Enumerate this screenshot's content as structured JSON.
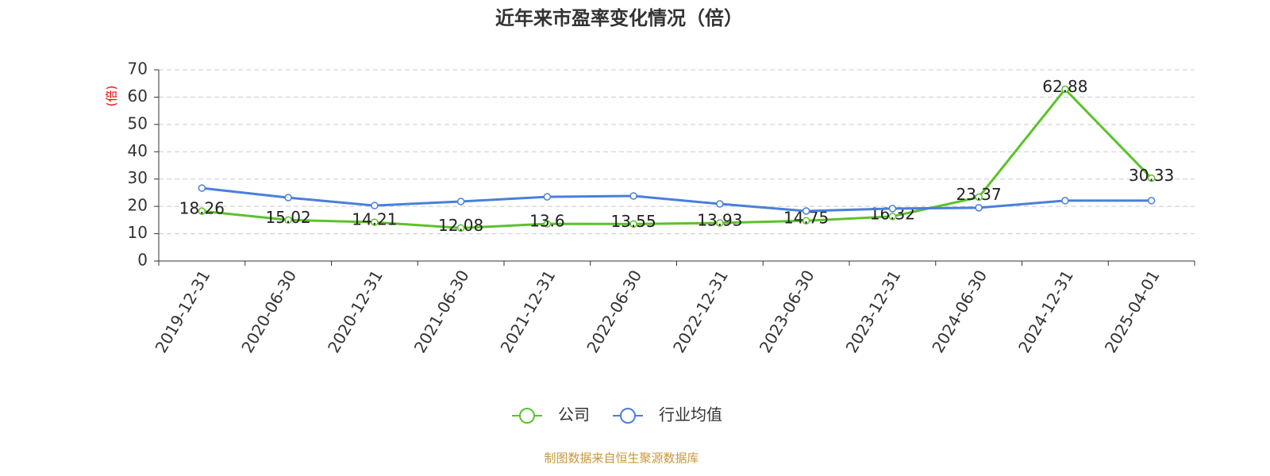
{
  "chart_data": {
    "type": "line",
    "title": "近年来市盈率变化情况（倍）",
    "y_label": "(倍)",
    "categories": [
      "2019-12-31",
      "2020-06-30",
      "2020-12-31",
      "2021-06-30",
      "2021-12-31",
      "2022-06-30",
      "2022-12-31",
      "2023-06-30",
      "2023-12-31",
      "2024-06-30",
      "2024-12-31",
      "2025-04-01"
    ],
    "series": [
      {
        "name": "公司",
        "color": "#5cc22a",
        "values": [
          18.26,
          15.02,
          14.21,
          12.08,
          13.6,
          13.55,
          13.93,
          14.75,
          16.32,
          23.37,
          62.88,
          30.33
        ],
        "show_labels": true
      },
      {
        "name": "行业均值",
        "color": "#4a7fdc",
        "values": [
          26.7,
          23.2,
          20.3,
          21.8,
          23.5,
          23.8,
          20.9,
          18.3,
          19.2,
          19.5,
          22.1,
          22.1
        ],
        "show_labels": false
      }
    ],
    "ylim": [
      0,
      70
    ],
    "yticks": [
      0,
      10,
      20,
      30,
      40,
      50,
      60,
      70
    ],
    "grid": true,
    "source": "制图数据来自恒生聚源数据库"
  }
}
